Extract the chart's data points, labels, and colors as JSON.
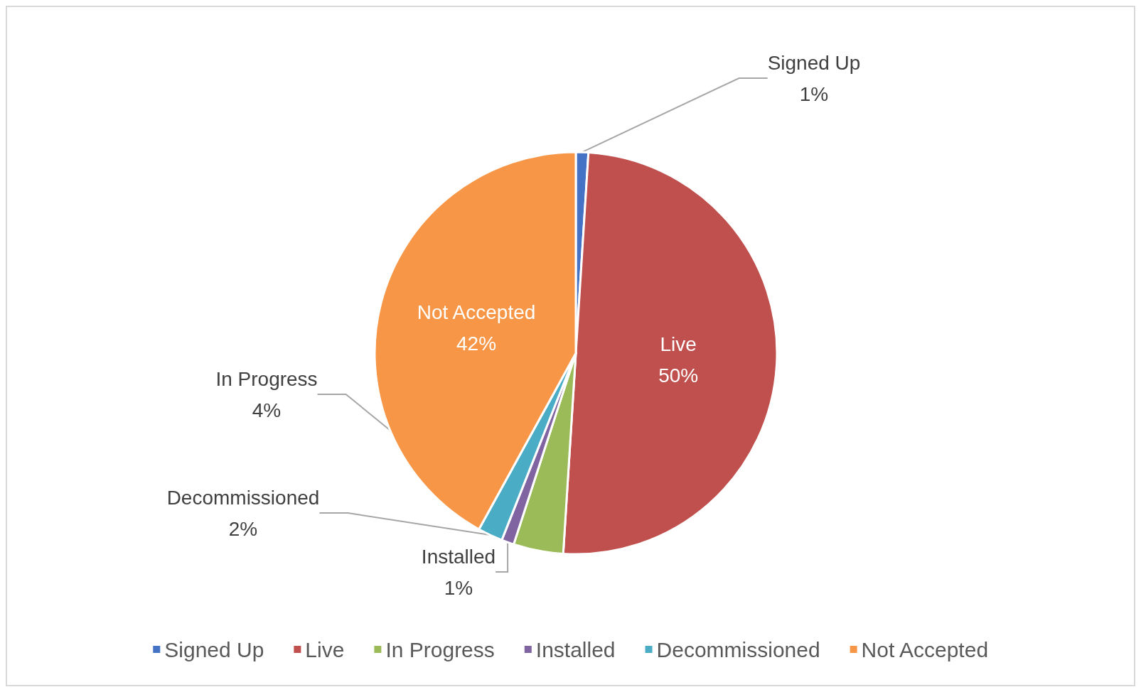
{
  "chart_data": {
    "type": "pie",
    "categories": [
      "Signed Up",
      "Live",
      "In Progress",
      "Installed",
      "Decommissioned",
      "Not Accepted"
    ],
    "values": [
      1,
      50,
      4,
      1,
      2,
      42
    ],
    "colors": [
      "#4472c4",
      "#c0504d",
      "#9bbb59",
      "#8064a2",
      "#4bacc6",
      "#f79646"
    ],
    "value_labels": [
      "1%",
      "50%",
      "4%",
      "1%",
      "2%",
      "42%"
    ],
    "legend": "bottom"
  }
}
